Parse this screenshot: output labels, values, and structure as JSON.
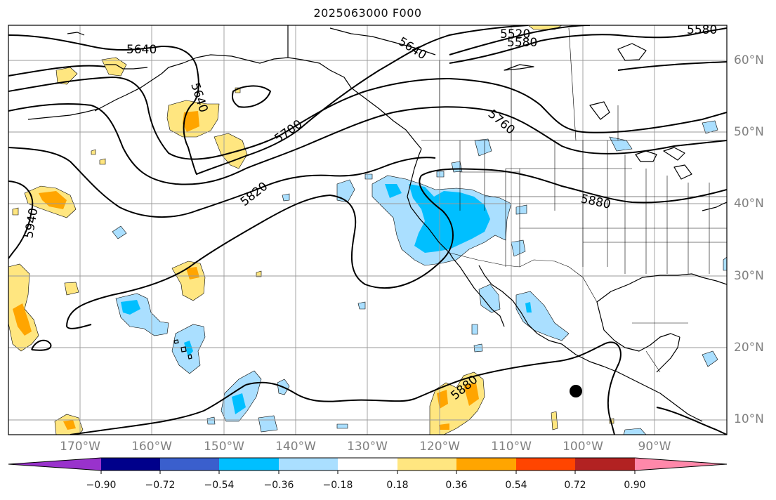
{
  "title": "2025063000 F000",
  "lat_labels": [
    "60°N",
    "50°N",
    "40°N",
    "30°N",
    "20°N",
    "10°N"
  ],
  "lon_labels": [
    "170°W",
    "160°W",
    "150°W",
    "140°W",
    "130°W",
    "120°W",
    "110°W",
    "100°W",
    "90°W"
  ],
  "contour_labels": [
    "5640",
    "5640",
    "5640",
    "5520",
    "5580",
    "5580",
    "5700",
    "5760",
    "5820",
    "5880",
    "5880",
    "5940"
  ],
  "colorbar": {
    "tick_labels": [
      "−0.90",
      "−0.72",
      "−0.54",
      "−0.36",
      "−0.18",
      "0.18",
      "0.36",
      "0.54",
      "0.72",
      "0.90"
    ],
    "colors": [
      "#9932cc",
      "#00008b",
      "#3a5fcd",
      "#00bfff",
      "#aadfff",
      "#ffffff",
      "#ffe680",
      "#ffa500",
      "#ff4500",
      "#b22222",
      "#ff88aa"
    ]
  },
  "colors": {
    "contour": "#000000",
    "coast": "#000000",
    "grid": "#9a9a9a",
    "axis_label": "#808080"
  }
}
